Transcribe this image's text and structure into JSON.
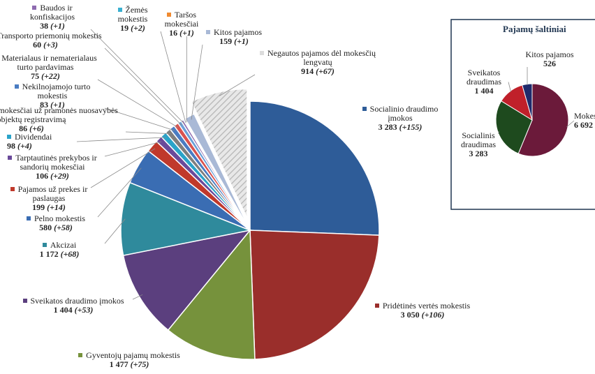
{
  "chart_data": [
    {
      "type": "pie",
      "categories": [
        "Socialinio draudimo įmokos",
        "Pridėtinės vertės mokestis",
        "Gyventojų pajamų mokestis",
        "Sveikatos draudimo įmokos",
        "Akcizai",
        "Pelno mokestis",
        "Pajamos už prekes ir paslaugas",
        "Tarptautinės prekybos ir sandorių mokesčiai",
        "Dividendai",
        "Rinkliavos ir mokesčiai už pramonės nuosavybės objektų registravimą",
        "Nekilnojamojo turto mokestis",
        "Materialaus ir nematerialaus turto pardavimas",
        "Transporto priemonių mokestis",
        "Baudos ir konfiskacijos",
        "Žemės mokestis",
        "Taršos mokesčiai",
        "Kitos pajamos",
        "Negautos pajamos dėl mokesčių lengvatų"
      ],
      "values": [
        3283,
        3050,
        1477,
        1404,
        1172,
        580,
        199,
        106,
        98,
        86,
        83,
        75,
        60,
        38,
        19,
        16,
        159,
        914
      ],
      "value_labels": [
        "3 283",
        "3 050",
        "1 477",
        "1 404",
        "1 172",
        "580",
        "199",
        "106",
        "98",
        "86",
        "83",
        "75",
        "60",
        "38",
        "19",
        "16",
        "159",
        "914"
      ],
      "change_labels": [
        "(+155)",
        "(+106)",
        "(+75)",
        "(+53)",
        "(+68)",
        "(+58)",
        "(+14)",
        "(+29)",
        "(+4)",
        "(+6)",
        "(+1)",
        "(+22)",
        "(+3)",
        "(+1)",
        "(+2)",
        "(+1)",
        "(+1)",
        "(+67)"
      ],
      "colors": [
        "#2e5c98",
        "#9a2e2b",
        "#76923c",
        "#5b3f7e",
        "#2f8a9c",
        "#3a6db3",
        "#c0392b",
        "#6a4a9a",
        "#2aa3c9",
        "#7f7f7f",
        "#4a7cc2",
        "#d9534f",
        "#6aa0d8",
        "#8e6bb0",
        "#3ab0d0",
        "#f08a30",
        "#a9b9d6",
        "#dcdcdc"
      ],
      "explode": 17
    },
    {
      "type": "pie",
      "title": "Pajamų šaltiniai",
      "categories": [
        "Mokesčiai",
        "Socialinis draudimas",
        "Sveikatos draudimas",
        "Kitos pajamos"
      ],
      "values": [
        6692,
        3283,
        1404,
        526
      ],
      "value_labels": [
        "6 692",
        "3 283",
        "1 404",
        "526"
      ],
      "colors": [
        "#6b1a3a",
        "#1e4a1e",
        "#c0202a",
        "#1f2a6b"
      ]
    }
  ]
}
